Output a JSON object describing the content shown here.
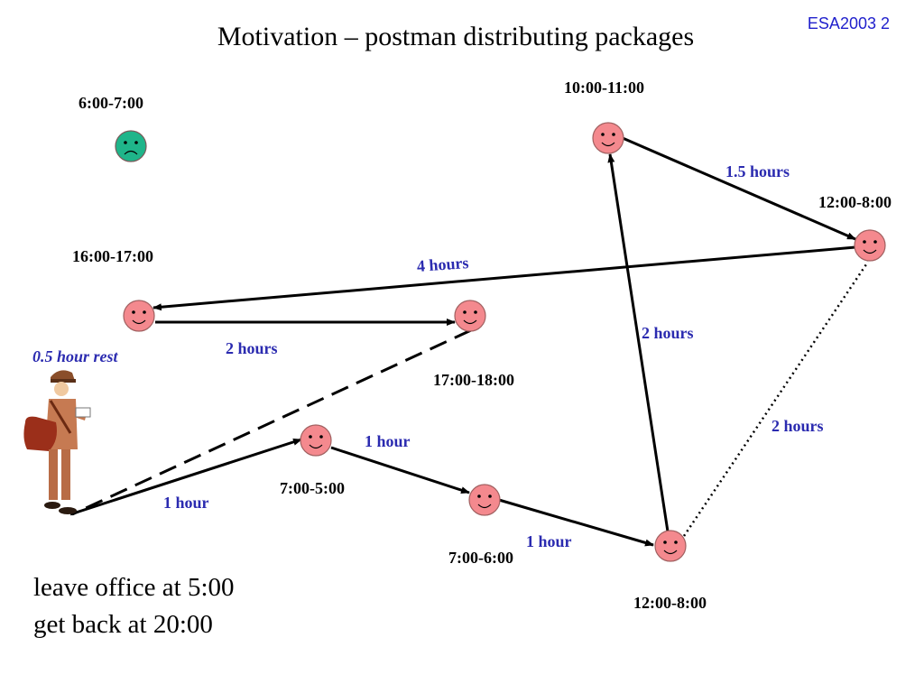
{
  "slide": {
    "title": "Motivation – postman distributing packages",
    "slide_number": "ESA2003 2"
  },
  "colors": {
    "customer_face": "#f4898e",
    "unavailable_face": "#1fb58a",
    "duration_text": "#2b2bb0",
    "edge": "#000000"
  },
  "customers": [
    {
      "id": "c6",
      "time_window": "6:00-7:00",
      "mood": "sad"
    },
    {
      "id": "c10",
      "time_window": "10:00-11:00",
      "mood": "happy"
    },
    {
      "id": "c12a",
      "time_window": "12:00-8:00",
      "mood": "happy"
    },
    {
      "id": "c16",
      "time_window": "16:00-17:00",
      "mood": "happy"
    },
    {
      "id": "c17",
      "time_window": "17:00-18:00",
      "mood": "happy"
    },
    {
      "id": "c7a",
      "time_window": "7:00-5:00",
      "mood": "happy"
    },
    {
      "id": "c7b",
      "time_window": "7:00-6:00",
      "mood": "happy"
    },
    {
      "id": "c12b",
      "time_window": "12:00-8:00",
      "mood": "happy"
    }
  ],
  "edges": [
    {
      "from": "office",
      "to": "c7a",
      "label": "1 hour",
      "style": "solid"
    },
    {
      "from": "c7a",
      "to": "c7b",
      "label": "1 hour",
      "style": "solid"
    },
    {
      "from": "c7b",
      "to": "c12b",
      "label": "1 hour",
      "style": "solid"
    },
    {
      "from": "c12b",
      "to": "c10",
      "label": "2 hours",
      "style": "solid"
    },
    {
      "from": "c10",
      "to": "c12a",
      "label": "1.5 hours",
      "style": "solid"
    },
    {
      "from": "c12a",
      "to": "c16",
      "label": "4 hours",
      "style": "solid"
    },
    {
      "from": "c16",
      "to": "c17",
      "label": "2 hours",
      "style": "solid"
    },
    {
      "from": "c17",
      "to": "office",
      "label": "",
      "style": "dashed"
    },
    {
      "from": "c12b",
      "to": "c12a",
      "label": "2 hours",
      "style": "dotted"
    }
  ],
  "rest_label": "0.5 hour rest",
  "postman_figure": "postman-with-mailbag",
  "notes": [
    "leave office at 5:00",
    "get back at 20:00"
  ]
}
